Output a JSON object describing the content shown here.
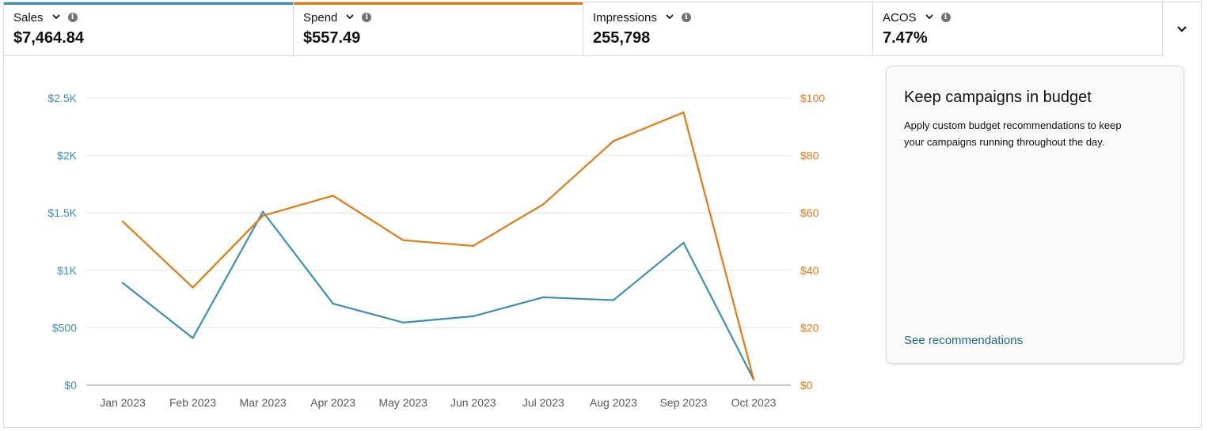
{
  "metrics": [
    {
      "label": "Sales",
      "value": "$7,464.84",
      "color": "#3a8fb7"
    },
    {
      "label": "Spend",
      "value": "$557.49",
      "color": "#e47911"
    },
    {
      "label": "Impressions",
      "value": "255,798",
      "color": ""
    },
    {
      "label": "ACOS",
      "value": "7.47%",
      "color": ""
    }
  ],
  "info_glyph": "i",
  "recommendation": {
    "title": "Keep campaigns in budget",
    "text": "Apply custom budget recommendations to keep your campaigns running throughout the day.",
    "link": "See recommendations"
  },
  "chart_data": {
    "type": "line",
    "categories": [
      "Jan 2023",
      "Feb 2023",
      "Mar 2023",
      "Apr 2023",
      "May 2023",
      "Jun 2023",
      "Jul 2023",
      "Aug 2023",
      "Sep 2023",
      "Oct 2023"
    ],
    "series": [
      {
        "name": "Sales",
        "axis": "left",
        "color": "#3a8fb7",
        "values": [
          890,
          410,
          1510,
          710,
          545,
          600,
          765,
          740,
          1240,
          50
        ]
      },
      {
        "name": "Spend",
        "axis": "right",
        "color": "#e47911",
        "values": [
          57,
          34,
          59,
          66,
          50.5,
          48.5,
          63,
          85,
          95,
          2
        ]
      }
    ],
    "left_axis": {
      "ticks": [
        "$0",
        "$500",
        "$1K",
        "$1.5K",
        "$2K",
        "$2.5K"
      ],
      "ylim": [
        0,
        2500
      ]
    },
    "right_axis": {
      "ticks": [
        "$0",
        "$20",
        "$40",
        "$60",
        "$80",
        "$100"
      ],
      "ylim": [
        0,
        100
      ]
    },
    "grid": true
  }
}
